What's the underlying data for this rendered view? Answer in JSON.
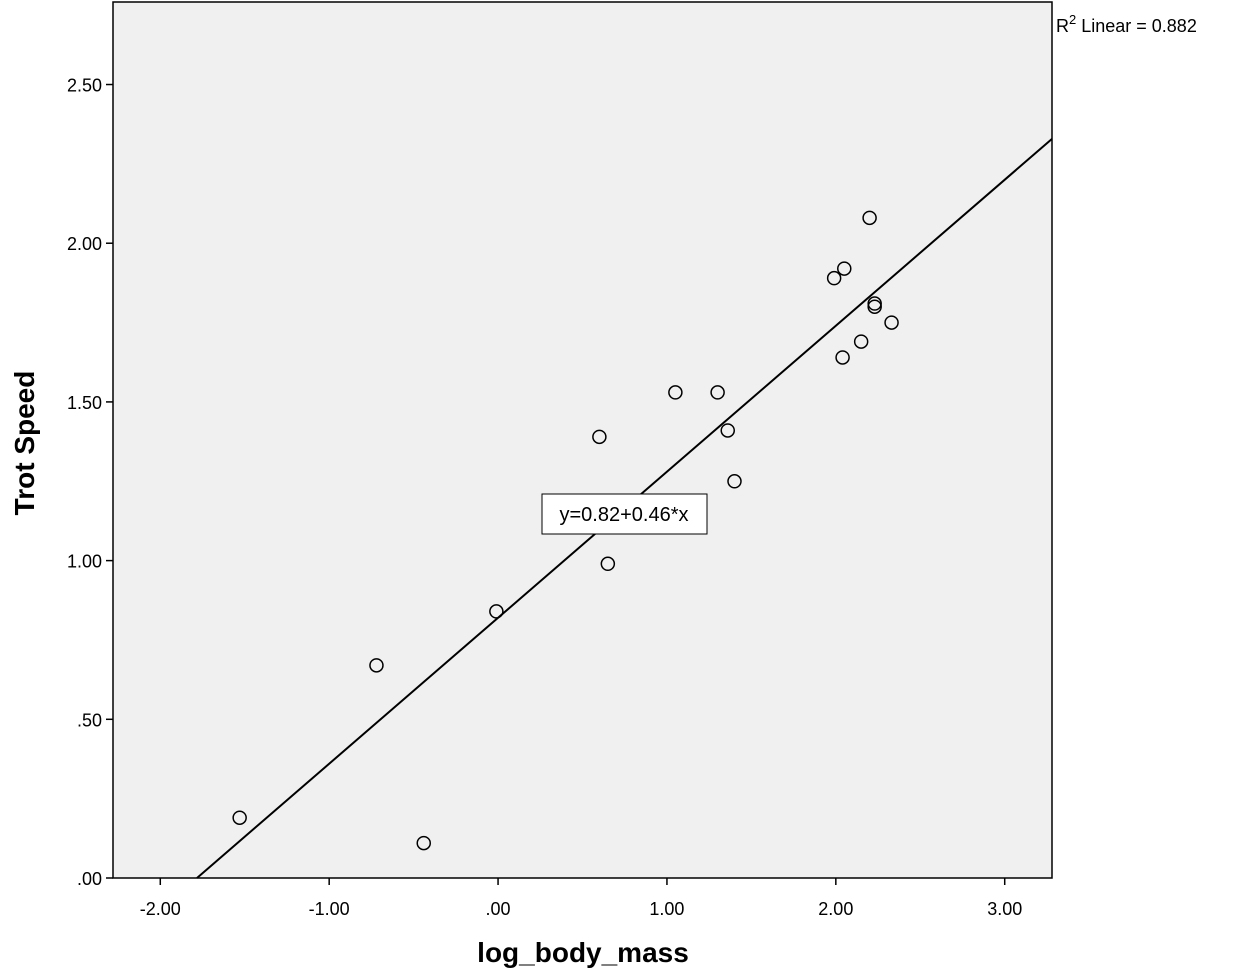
{
  "chart_data": {
    "type": "scatter",
    "title": "",
    "xlabel": "log_body_mass",
    "ylabel": "Trot Speed",
    "xlim": [
      -2.28,
      3.28
    ],
    "ylim": [
      0.0,
      2.76
    ],
    "x_ticks": [
      -2.0,
      -1.0,
      0.0,
      1.0,
      2.0,
      3.0
    ],
    "x_tick_labels": [
      "-2.00",
      "-1.00",
      ".00",
      "1.00",
      "2.00",
      "3.00"
    ],
    "y_ticks": [
      0.0,
      0.5,
      1.0,
      1.5,
      2.0,
      2.5
    ],
    "y_tick_labels": [
      ".00",
      ".50",
      "1.00",
      "1.50",
      "2.00",
      "2.50"
    ],
    "grid": false,
    "plot_background": "#f0f0f0",
    "marker": "open-circle",
    "points": [
      {
        "x": -1.53,
        "y": 0.19
      },
      {
        "x": -0.72,
        "y": 0.67
      },
      {
        "x": -0.44,
        "y": 0.11
      },
      {
        "x": -0.01,
        "y": 0.84
      },
      {
        "x": 0.6,
        "y": 1.39
      },
      {
        "x": 0.65,
        "y": 0.99
      },
      {
        "x": 1.05,
        "y": 1.53
      },
      {
        "x": 1.3,
        "y": 1.53
      },
      {
        "x": 1.36,
        "y": 1.41
      },
      {
        "x": 1.4,
        "y": 1.25
      },
      {
        "x": 1.99,
        "y": 1.89
      },
      {
        "x": 2.04,
        "y": 1.64
      },
      {
        "x": 2.05,
        "y": 1.92
      },
      {
        "x": 2.15,
        "y": 1.69
      },
      {
        "x": 2.2,
        "y": 2.08
      },
      {
        "x": 2.23,
        "y": 1.81
      },
      {
        "x": 2.23,
        "y": 1.8
      },
      {
        "x": 2.33,
        "y": 1.75
      }
    ],
    "fit_line": {
      "intercept": 0.82,
      "slope": 0.46
    },
    "equation_label": "y=0.82+0.46*x",
    "r2_label": {
      "prefix": "R",
      "superscript": "2",
      "text": " Linear = 0.882"
    }
  }
}
